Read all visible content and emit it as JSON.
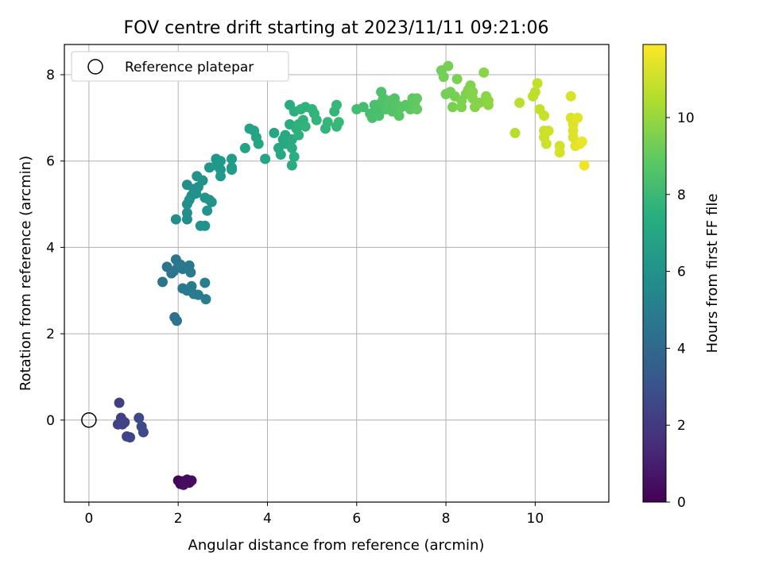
{
  "chart_data": {
    "type": "scatter",
    "title": "FOV centre drift starting at 2023/11/11 09:21:06",
    "xlabel": "Angular distance from reference (arcmin)",
    "ylabel": "Rotation from reference (arcmin)",
    "xlim": [
      -0.55,
      11.65
    ],
    "ylim": [
      -1.9,
      8.7
    ],
    "xticks": [
      0,
      2,
      4,
      6,
      8,
      10
    ],
    "yticks": [
      0,
      2,
      4,
      6,
      8
    ],
    "grid": true,
    "legend": {
      "position": "top-left",
      "entries": [
        "Reference platepar"
      ]
    },
    "colorbar": {
      "label": "Hours from first FF file",
      "range": [
        0,
        11.9
      ],
      "ticks": [
        0,
        2,
        4,
        6,
        8,
        10
      ],
      "colormap": "viridis"
    },
    "reference_point": {
      "x": 0,
      "y": 0,
      "label": "Reference platepar"
    },
    "series": [
      {
        "points": [
          [
            2.0,
            -1.4,
            0.1
          ],
          [
            2.05,
            -1.48,
            0.15
          ],
          [
            2.1,
            -1.42,
            0.2
          ],
          [
            2.15,
            -1.45,
            0.25
          ],
          [
            2.2,
            -1.38,
            0.3
          ],
          [
            2.25,
            -1.45,
            0.35
          ],
          [
            2.3,
            -1.4,
            0.4
          ],
          [
            2.12,
            -1.5,
            0.45
          ],
          [
            0.68,
            0.4,
            2.2
          ],
          [
            0.72,
            0.05,
            2.25
          ],
          [
            0.65,
            -0.1,
            2.3
          ],
          [
            0.8,
            -0.05,
            2.35
          ],
          [
            0.75,
            -0.1,
            2.4
          ],
          [
            0.85,
            -0.38,
            2.45
          ],
          [
            0.92,
            -0.4,
            2.5
          ],
          [
            1.12,
            0.05,
            2.55
          ],
          [
            1.18,
            -0.15,
            2.6
          ],
          [
            1.22,
            -0.28,
            2.65
          ],
          [
            1.92,
            2.38,
            4.4
          ],
          [
            1.97,
            2.3,
            4.45
          ],
          [
            1.65,
            3.2,
            4.6
          ],
          [
            1.75,
            3.55,
            4.6
          ],
          [
            1.85,
            3.4,
            4.65
          ],
          [
            1.95,
            3.72,
            4.65
          ],
          [
            1.9,
            3.45,
            4.7
          ],
          [
            2.0,
            3.55,
            4.7
          ],
          [
            2.05,
            3.6,
            4.75
          ],
          [
            2.1,
            3.5,
            4.8
          ],
          [
            2.25,
            3.58,
            4.8
          ],
          [
            2.28,
            3.42,
            4.85
          ],
          [
            2.1,
            3.05,
            4.9
          ],
          [
            2.2,
            3.0,
            4.9
          ],
          [
            2.3,
            3.1,
            4.95
          ],
          [
            2.35,
            2.92,
            5.0
          ],
          [
            2.45,
            2.9,
            5.0
          ],
          [
            2.6,
            3.18,
            5.05
          ],
          [
            2.62,
            2.8,
            5.1
          ],
          [
            1.95,
            4.65,
            5.8
          ],
          [
            2.2,
            4.65,
            5.8
          ],
          [
            2.2,
            4.8,
            5.85
          ],
          [
            2.2,
            5.0,
            5.85
          ],
          [
            2.25,
            5.1,
            5.9
          ],
          [
            2.2,
            5.45,
            5.9
          ],
          [
            2.3,
            5.2,
            5.95
          ],
          [
            2.35,
            5.35,
            5.95
          ],
          [
            2.4,
            5.25,
            6.0
          ],
          [
            2.45,
            5.4,
            6.0
          ],
          [
            2.42,
            5.65,
            6.05
          ],
          [
            2.55,
            5.55,
            6.05
          ],
          [
            2.5,
            4.5,
            6.1
          ],
          [
            2.6,
            4.5,
            6.1
          ],
          [
            2.65,
            4.85,
            6.15
          ],
          [
            2.6,
            5.15,
            6.15
          ],
          [
            2.7,
            5.1,
            6.2
          ],
          [
            2.75,
            5.05,
            6.2
          ],
          [
            2.7,
            5.85,
            6.25
          ],
          [
            2.85,
            5.9,
            6.3
          ],
          [
            2.85,
            6.05,
            6.3
          ],
          [
            2.95,
            6.0,
            6.35
          ],
          [
            2.95,
            5.8,
            6.35
          ],
          [
            2.95,
            5.65,
            6.4
          ],
          [
            3.2,
            5.85,
            6.45
          ],
          [
            3.2,
            5.8,
            6.5
          ],
          [
            3.2,
            6.05,
            6.5
          ],
          [
            3.5,
            6.3,
            6.8
          ],
          [
            3.6,
            6.75,
            6.85
          ],
          [
            3.7,
            6.7,
            6.9
          ],
          [
            3.75,
            6.55,
            6.95
          ],
          [
            3.8,
            6.4,
            7.0
          ],
          [
            3.95,
            6.05,
            7.0
          ],
          [
            4.15,
            6.65,
            7.05
          ],
          [
            4.25,
            6.3,
            7.1
          ],
          [
            4.3,
            6.15,
            7.1
          ],
          [
            4.35,
            6.5,
            7.15
          ],
          [
            4.4,
            6.4,
            7.15
          ],
          [
            4.4,
            6.6,
            7.2
          ],
          [
            4.45,
            6.45,
            7.2
          ],
          [
            4.5,
            7.3,
            7.25
          ],
          [
            4.5,
            6.85,
            7.3
          ],
          [
            4.55,
            6.5,
            7.3
          ],
          [
            4.55,
            6.3,
            7.35
          ],
          [
            4.55,
            5.9,
            7.35
          ],
          [
            4.6,
            6.1,
            7.4
          ],
          [
            4.6,
            7.15,
            7.45
          ],
          [
            4.65,
            6.75,
            7.5
          ],
          [
            4.7,
            6.6,
            7.5
          ],
          [
            4.7,
            6.85,
            7.55
          ],
          [
            4.75,
            7.2,
            7.6
          ],
          [
            4.8,
            6.95,
            7.6
          ],
          [
            4.85,
            7.25,
            7.65
          ],
          [
            4.85,
            6.8,
            7.7
          ],
          [
            5.0,
            7.2,
            7.7
          ],
          [
            5.05,
            7.1,
            7.75
          ],
          [
            5.1,
            6.95,
            7.8
          ],
          [
            5.3,
            6.75,
            7.8
          ],
          [
            5.35,
            6.9,
            7.85
          ],
          [
            5.5,
            7.15,
            7.9
          ],
          [
            5.55,
            6.8,
            7.95
          ],
          [
            5.55,
            7.3,
            7.95
          ],
          [
            5.6,
            6.9,
            8.0
          ],
          [
            6.0,
            7.2,
            8.3
          ],
          [
            6.15,
            7.25,
            8.3
          ],
          [
            6.3,
            7.1,
            8.35
          ],
          [
            6.35,
            7.0,
            8.4
          ],
          [
            6.4,
            7.3,
            8.4
          ],
          [
            6.45,
            7.15,
            8.45
          ],
          [
            6.5,
            7.05,
            8.45
          ],
          [
            6.55,
            7.35,
            8.5
          ],
          [
            6.55,
            7.6,
            8.5
          ],
          [
            6.6,
            7.45,
            8.55
          ],
          [
            6.65,
            7.2,
            8.55
          ],
          [
            6.7,
            7.3,
            8.6
          ],
          [
            6.75,
            7.4,
            8.6
          ],
          [
            6.8,
            7.15,
            8.65
          ],
          [
            6.85,
            7.45,
            8.65
          ],
          [
            6.9,
            7.3,
            8.7
          ],
          [
            6.95,
            7.05,
            8.75
          ],
          [
            7.0,
            7.25,
            8.8
          ],
          [
            7.1,
            7.3,
            8.8
          ],
          [
            7.2,
            7.2,
            8.85
          ],
          [
            7.25,
            7.45,
            8.9
          ],
          [
            7.3,
            7.35,
            8.9
          ],
          [
            7.35,
            7.45,
            8.95
          ],
          [
            7.35,
            7.2,
            9.0
          ],
          [
            7.9,
            8.1,
            9.3
          ],
          [
            7.95,
            7.95,
            9.35
          ],
          [
            8.0,
            7.55,
            9.35
          ],
          [
            8.05,
            8.2,
            9.4
          ],
          [
            8.1,
            7.6,
            9.4
          ],
          [
            8.15,
            7.25,
            9.45
          ],
          [
            8.2,
            7.5,
            9.45
          ],
          [
            8.25,
            7.9,
            9.5
          ],
          [
            8.35,
            7.4,
            9.5
          ],
          [
            8.35,
            7.25,
            9.55
          ],
          [
            8.45,
            7.55,
            9.55
          ],
          [
            8.5,
            7.65,
            9.6
          ],
          [
            8.55,
            7.75,
            9.6
          ],
          [
            8.6,
            7.45,
            9.65
          ],
          [
            8.6,
            7.6,
            9.65
          ],
          [
            8.65,
            7.25,
            9.7
          ],
          [
            8.75,
            7.35,
            9.7
          ],
          [
            8.85,
            8.05,
            9.75
          ],
          [
            8.9,
            7.5,
            9.75
          ],
          [
            8.95,
            7.3,
            9.8
          ],
          [
            8.95,
            7.4,
            9.85
          ],
          [
            9.55,
            6.65,
            10.6
          ],
          [
            9.65,
            7.35,
            10.65
          ],
          [
            9.95,
            7.5,
            10.7
          ],
          [
            10.0,
            7.6,
            10.75
          ],
          [
            10.05,
            7.8,
            10.8
          ],
          [
            10.1,
            7.2,
            10.85
          ],
          [
            10.2,
            7.05,
            10.9
          ],
          [
            10.2,
            6.7,
            10.95
          ],
          [
            10.2,
            6.55,
            11.0
          ],
          [
            10.25,
            6.4,
            11.0
          ],
          [
            10.3,
            6.7,
            11.05
          ],
          [
            10.55,
            6.35,
            11.1
          ],
          [
            10.55,
            6.2,
            11.15
          ],
          [
            10.8,
            7.5,
            11.2
          ],
          [
            10.8,
            7.0,
            11.25
          ],
          [
            10.85,
            6.85,
            11.3
          ],
          [
            10.85,
            6.7,
            11.3
          ],
          [
            10.85,
            6.55,
            11.35
          ],
          [
            10.9,
            6.35,
            11.4
          ],
          [
            10.95,
            7.0,
            11.45
          ],
          [
            11.0,
            6.4,
            11.5
          ],
          [
            11.05,
            6.45,
            11.55
          ],
          [
            11.1,
            5.9,
            11.6
          ]
        ]
      }
    ]
  }
}
